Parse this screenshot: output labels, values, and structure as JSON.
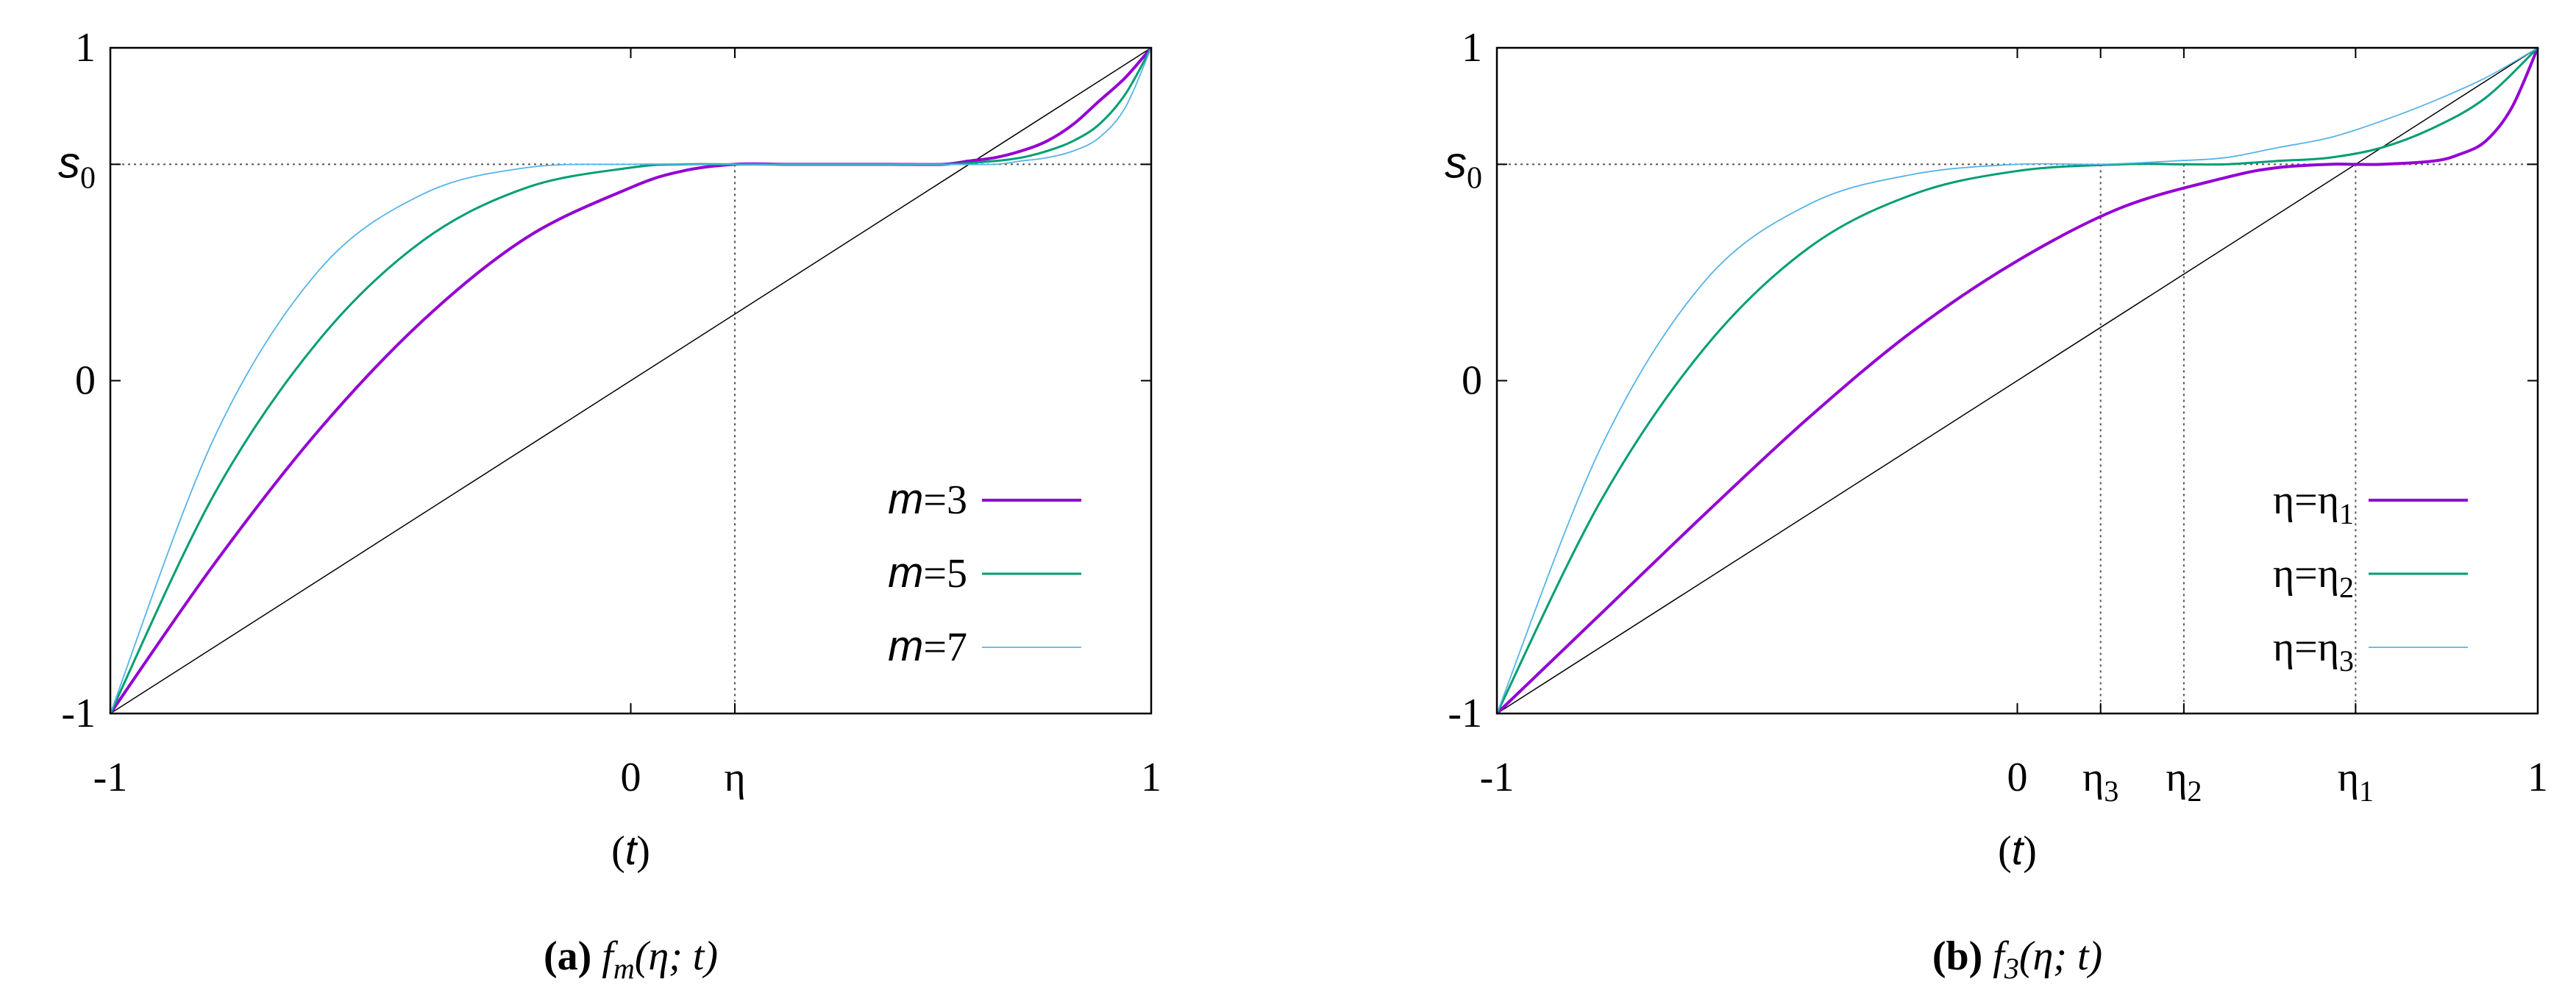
{
  "colors": {
    "m3": "#9400D3",
    "m5": "#009E73",
    "m7": "#56B4E9",
    "axis": "#000000",
    "ref": "#555555"
  },
  "chart_data": [
    {
      "type": "line",
      "caption_label": "(a)",
      "caption_text": "f_m(η; t)",
      "caption_parts": {
        "f": "f",
        "sub": "m",
        "args": "(η; t)"
      },
      "xlabel_text": "(t)",
      "xlabel_parts": {
        "open": "(",
        "var": "t",
        "close": ")"
      },
      "xlim": [
        -1,
        1
      ],
      "ylim": [
        -1,
        1
      ],
      "xticks": [
        {
          "value": -1,
          "label": "-1"
        },
        {
          "value": 0,
          "label": "0"
        },
        {
          "value": 0.2,
          "label": "η"
        },
        {
          "value": 1,
          "label": "1"
        }
      ],
      "yticks": [
        {
          "value": -1,
          "label": "-1"
        },
        {
          "value": 0,
          "label": "0"
        },
        {
          "value": 0.65,
          "label_main": "s",
          "label_sub": "0"
        },
        {
          "value": 1,
          "label": "1"
        }
      ],
      "s0": 0.65,
      "eta_markers": [
        0.2
      ],
      "series": [
        {
          "name": "m=3",
          "label_main": "m",
          "label_rest": "=3",
          "color": "#9400D3",
          "width": 4,
          "x": [
            -1,
            -0.8,
            -0.6,
            -0.4,
            -0.2,
            0,
            0.1,
            0.2,
            0.3,
            0.4,
            0.5,
            0.6,
            0.65,
            0.7,
            0.75,
            0.8,
            0.85,
            0.9,
            0.95,
            1
          ],
          "y": [
            -1,
            -0.55,
            -0.15,
            0.18,
            0.43,
            0.58,
            0.63,
            0.65,
            0.65,
            0.65,
            0.65,
            0.65,
            0.66,
            0.67,
            0.69,
            0.72,
            0.77,
            0.84,
            0.91,
            1
          ]
        },
        {
          "name": "m=5",
          "label_main": "m",
          "label_rest": "=5",
          "color": "#009E73",
          "width": 3,
          "x": [
            -1,
            -0.8,
            -0.6,
            -0.4,
            -0.2,
            0,
            0.1,
            0.2,
            0.3,
            0.4,
            0.5,
            0.6,
            0.7,
            0.75,
            0.8,
            0.85,
            0.9,
            0.95,
            1
          ],
          "y": [
            -1,
            -0.34,
            0.12,
            0.42,
            0.58,
            0.64,
            0.65,
            0.65,
            0.65,
            0.65,
            0.65,
            0.65,
            0.66,
            0.67,
            0.69,
            0.72,
            0.77,
            0.86,
            1
          ]
        },
        {
          "name": "m=7",
          "label_main": "m",
          "label_rest": "=7",
          "color": "#56B4E9",
          "width": 1.8,
          "x": [
            -1,
            -0.8,
            -0.6,
            -0.4,
            -0.2,
            0,
            0.1,
            0.2,
            0.3,
            0.4,
            0.5,
            0.6,
            0.7,
            0.75,
            0.8,
            0.85,
            0.9,
            0.95,
            1
          ],
          "y": [
            -1,
            -0.17,
            0.33,
            0.56,
            0.64,
            0.65,
            0.65,
            0.65,
            0.65,
            0.65,
            0.65,
            0.65,
            0.65,
            0.66,
            0.67,
            0.69,
            0.73,
            0.82,
            1
          ]
        }
      ]
    },
    {
      "type": "line",
      "caption_label": "(b)",
      "caption_text": "f_3(η; t)",
      "caption_parts": {
        "f": "f",
        "sub": "3",
        "args": "(η; t)"
      },
      "xlabel_text": "(t)",
      "xlabel_parts": {
        "open": "(",
        "var": "t",
        "close": ")"
      },
      "xlim": [
        -1,
        1
      ],
      "ylim": [
        -1,
        1
      ],
      "xticks": [
        {
          "value": -1,
          "label": "-1"
        },
        {
          "value": 0,
          "label": "0"
        },
        {
          "value": 0.16,
          "label_main": "η",
          "label_sub": "3"
        },
        {
          "value": 0.32,
          "label_main": "η",
          "label_sub": "2"
        },
        {
          "value": 0.65,
          "label_main": "η",
          "label_sub": "1"
        },
        {
          "value": 1,
          "label": "1"
        }
      ],
      "yticks": [
        {
          "value": -1,
          "label": "-1"
        },
        {
          "value": 0,
          "label": "0"
        },
        {
          "value": 0.65,
          "label_main": "s",
          "label_sub": "0"
        },
        {
          "value": 1,
          "label": "1"
        }
      ],
      "s0": 0.65,
      "eta_markers": [
        0.16,
        0.32,
        0.65
      ],
      "series": [
        {
          "name": "η=η1",
          "label_main": "η=η",
          "label_sub": "1",
          "color": "#9400D3",
          "width": 4,
          "x": [
            -1,
            -0.8,
            -0.6,
            -0.4,
            -0.2,
            0,
            0.2,
            0.4,
            0.5,
            0.6,
            0.65,
            0.7,
            0.8,
            0.85,
            0.9,
            0.95,
            1
          ],
          "y": [
            -1,
            -0.7,
            -0.4,
            -0.11,
            0.15,
            0.36,
            0.52,
            0.61,
            0.64,
            0.65,
            0.65,
            0.65,
            0.66,
            0.68,
            0.72,
            0.82,
            1
          ]
        },
        {
          "name": "η=η2",
          "label_main": "η=η",
          "label_sub": "2",
          "color": "#009E73",
          "width": 3,
          "x": [
            -1,
            -0.8,
            -0.6,
            -0.4,
            -0.2,
            0,
            0.2,
            0.32,
            0.4,
            0.5,
            0.6,
            0.7,
            0.8,
            0.9,
            1
          ],
          "y": [
            -1,
            -0.36,
            0.1,
            0.4,
            0.56,
            0.63,
            0.65,
            0.65,
            0.65,
            0.66,
            0.67,
            0.7,
            0.76,
            0.85,
            1
          ]
        },
        {
          "name": "η=η3",
          "label_main": "η=η",
          "label_sub": "3",
          "color": "#56B4E9",
          "width": 1.8,
          "x": [
            -1,
            -0.8,
            -0.6,
            -0.4,
            -0.2,
            0,
            0.16,
            0.3,
            0.4,
            0.5,
            0.6,
            0.7,
            0.8,
            0.9,
            1
          ],
          "y": [
            -1,
            -0.2,
            0.3,
            0.53,
            0.62,
            0.65,
            0.65,
            0.66,
            0.67,
            0.7,
            0.73,
            0.78,
            0.84,
            0.91,
            1
          ]
        }
      ]
    }
  ]
}
